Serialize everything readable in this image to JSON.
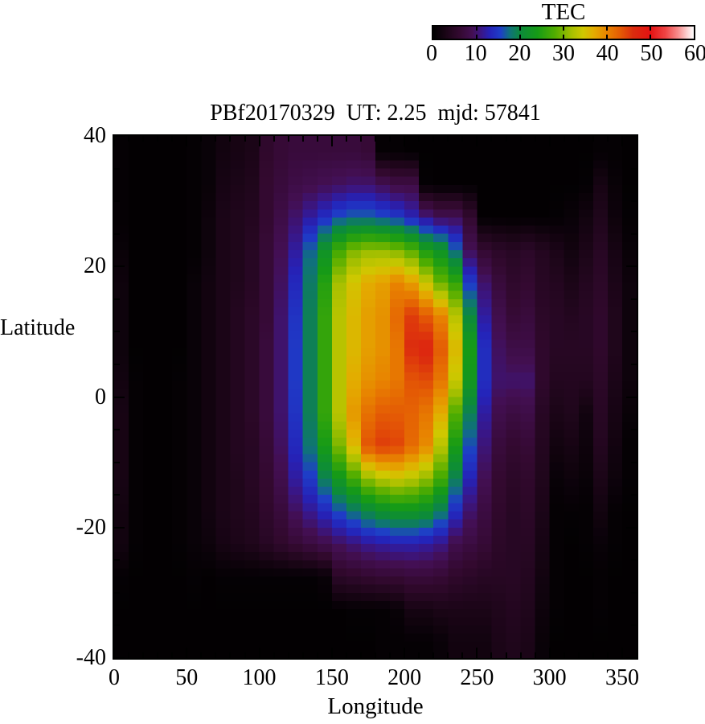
{
  "chart_data": {
    "type": "heatmap",
    "title": "PBf20170329  UT: 2.25  mjd: 57841",
    "xlabel": "Longitude",
    "ylabel": "Latitude",
    "xlim": [
      0,
      360
    ],
    "ylim": [
      -40,
      40
    ],
    "xticks_major": [
      0,
      50,
      100,
      150,
      200,
      250,
      300,
      350
    ],
    "xtick_minor_step": 10,
    "yticks_major": [
      40,
      20,
      0,
      -20,
      -40
    ],
    "ytick_minor_step": 5,
    "grid_lines": false,
    "colorbar": {
      "title": "TEC",
      "min": 0,
      "max": 60,
      "ticks": [
        0,
        10,
        20,
        30,
        40,
        50,
        60
      ]
    },
    "colormap_stops": [
      [
        0,
        "#000000"
      ],
      [
        3,
        "#1b0517"
      ],
      [
        6,
        "#330930"
      ],
      [
        9,
        "#430f52"
      ],
      [
        11,
        "#3a1685"
      ],
      [
        13,
        "#2522b8"
      ],
      [
        15.5,
        "#1e3ec8"
      ],
      [
        17.5,
        "#10707e"
      ],
      [
        20,
        "#0c8a3c"
      ],
      [
        24,
        "#169b16"
      ],
      [
        28,
        "#51ad00"
      ],
      [
        32,
        "#a8c000"
      ],
      [
        34.5,
        "#cfc800"
      ],
      [
        37,
        "#e3ac00"
      ],
      [
        40,
        "#e88400"
      ],
      [
        43,
        "#e45c04"
      ],
      [
        46,
        "#dc2c0e"
      ],
      [
        50,
        "#e41212"
      ],
      [
        53.5,
        "#ef4444"
      ],
      [
        56.5,
        "#f89090"
      ],
      [
        58.5,
        "#fcd2d2"
      ],
      [
        60,
        "#ffffff"
      ]
    ],
    "grid": {
      "lon_start": 5,
      "lon_step": 10,
      "lat_start": 37.5,
      "lat_step": -5,
      "values": [
        [
          0.5,
          0.3,
          0.3,
          0.3,
          0.3,
          0.5,
          1,
          2,
          2.5,
          3,
          5.5,
          6.5,
          7,
          7,
          7,
          7,
          7,
          6.5,
          0.5,
          0.5,
          0.3,
          0.3,
          0.3,
          0.3,
          0.3,
          0.3,
          0.3,
          0.3,
          0.3,
          0.3,
          0.3,
          0.3,
          0.3,
          0.5,
          0.5,
          0.3
        ],
        [
          0.5,
          0.3,
          0.3,
          0.3,
          0.3,
          0.5,
          1,
          2.5,
          3,
          3.5,
          6,
          7,
          8,
          8.5,
          9,
          9.5,
          10,
          10,
          9,
          8,
          8,
          0.5,
          0.3,
          0.3,
          0.3,
          0.3,
          0.3,
          0.3,
          0.3,
          0.3,
          0.3,
          0.3,
          0.5,
          2.5,
          1,
          0.3
        ],
        [
          0.5,
          0.3,
          0.3,
          0.3,
          0.3,
          0.5,
          1.5,
          3,
          3.5,
          4,
          6,
          8,
          10,
          12,
          14,
          16,
          17,
          17,
          16,
          15,
          13,
          11,
          9,
          9,
          6,
          0.3,
          0.3,
          0.3,
          0.3,
          0.3,
          0.5,
          1,
          2,
          3.5,
          1.5,
          0.5
        ],
        [
          1,
          0.3,
          0.3,
          0.3,
          0.3,
          0.5,
          1.5,
          3,
          3.5,
          4.5,
          6.5,
          9,
          12,
          17,
          22,
          27,
          30,
          31,
          31,
          30,
          28,
          24,
          22,
          17,
          9,
          6,
          5,
          4.5,
          5,
          4,
          3,
          2,
          3,
          4.5,
          2.5,
          1
        ],
        [
          1.5,
          0.3,
          0.3,
          0.3,
          0.3,
          1,
          2,
          3,
          3.5,
          4.5,
          6.5,
          9.5,
          13.5,
          18.5,
          25,
          32,
          35,
          37,
          38,
          40,
          38,
          34,
          29,
          26,
          15,
          10,
          7,
          5.5,
          6,
          4.5,
          4,
          3,
          4,
          5,
          3,
          1.5
        ],
        [
          1.5,
          0.3,
          0.3,
          0.3,
          0.3,
          1,
          2,
          3,
          4,
          5,
          6.5,
          10,
          14.5,
          19,
          26,
          33,
          36,
          38,
          39,
          42,
          45,
          43,
          40,
          33,
          20,
          12,
          8.5,
          6.5,
          7,
          5,
          4.5,
          4,
          4.5,
          5.5,
          3.5,
          1.5
        ],
        [
          1.5,
          0.3,
          0.3,
          0.3,
          0.3,
          1,
          2,
          3,
          4,
          5,
          7,
          10,
          15,
          19,
          26,
          33,
          36,
          38,
          39,
          41,
          46,
          47,
          43,
          36,
          24,
          14,
          9.5,
          8,
          8,
          5.5,
          4.5,
          4.5,
          4.5,
          5.5,
          3.5,
          1.5
        ],
        [
          2,
          0.5,
          0.3,
          0.3,
          0.5,
          1,
          2,
          3,
          4,
          5,
          7,
          10,
          15,
          19,
          26,
          33,
          37,
          39,
          40,
          41,
          43.5,
          44,
          41,
          34,
          23,
          14,
          10,
          10,
          10,
          5.5,
          4,
          4,
          4,
          5,
          3,
          1.5
        ],
        [
          2.5,
          0.5,
          0.3,
          0.3,
          0.5,
          1,
          2,
          3,
          4,
          5,
          7,
          10,
          14.5,
          19,
          26,
          33,
          38.5,
          41.5,
          43,
          43,
          42.5,
          41,
          37,
          28,
          19,
          12,
          8.5,
          7.5,
          8,
          4.5,
          3,
          3.5,
          2,
          4.5,
          2.5,
          1
        ],
        [
          2.5,
          0.5,
          0.3,
          0.3,
          0.5,
          1,
          2,
          3,
          4,
          4.5,
          6.5,
          9.5,
          13.5,
          18,
          24,
          30,
          36,
          43.5,
          45,
          44.5,
          42,
          39.5,
          33,
          24,
          16,
          10.5,
          7,
          6,
          6.5,
          4,
          2,
          2.5,
          1.5,
          4,
          2,
          0.5
        ],
        [
          2.5,
          0.5,
          0.3,
          0.3,
          0.5,
          1,
          2,
          3,
          3.5,
          4.5,
          6,
          8.5,
          12,
          15,
          19,
          23,
          27,
          31,
          33,
          34,
          33,
          31,
          27,
          19,
          13,
          9,
          6,
          5,
          5.5,
          3.5,
          1,
          1.5,
          1,
          3,
          1.5,
          0.5
        ],
        [
          2,
          0.5,
          0.3,
          0.3,
          0.5,
          1,
          2,
          3,
          3.5,
          4,
          5.5,
          7,
          9.5,
          11.5,
          13.5,
          16,
          18,
          20,
          21.5,
          22.5,
          22.5,
          21.5,
          18.5,
          14,
          10,
          7.5,
          5.5,
          4.5,
          5,
          3,
          0.5,
          0.5,
          0.5,
          2,
          0.5,
          0.3
        ],
        [
          2,
          0.5,
          0.3,
          0.3,
          0.5,
          1,
          1.5,
          2.5,
          3,
          3.5,
          4.5,
          5.5,
          6.5,
          7.5,
          8.5,
          9.5,
          10.5,
          11.5,
          12,
          12.5,
          12.5,
          12,
          11,
          8.5,
          7.5,
          6.5,
          5,
          4.5,
          4.5,
          2.5,
          0.5,
          0.3,
          0.5,
          1,
          0.5,
          0.3
        ],
        [
          0.5,
          0.3,
          0.3,
          0.3,
          0.3,
          0.5,
          0.3,
          0.5,
          0.5,
          0.5,
          0.5,
          0.5,
          0.5,
          0.5,
          1,
          5,
          5.5,
          6,
          6.5,
          6.5,
          7,
          7,
          6.5,
          5.5,
          5,
          4.5,
          4.5,
          4.5,
          4,
          2,
          0.5,
          0.3,
          0.3,
          0.5,
          0.3,
          0.3
        ],
        [
          0.3,
          0.3,
          0.3,
          0.3,
          0.3,
          0.3,
          0.3,
          0.3,
          0.3,
          0.3,
          0.3,
          0.3,
          0.3,
          0.3,
          0.3,
          0.3,
          0.5,
          0.5,
          0.5,
          1,
          2.5,
          2.5,
          3,
          3,
          3,
          3,
          3.5,
          4,
          3.5,
          1.5,
          0.5,
          0.3,
          0.3,
          0.5,
          0.3,
          0.3
        ],
        [
          0.3,
          0.3,
          0.3,
          0.3,
          0.3,
          0.3,
          0.3,
          0.3,
          0.3,
          0.3,
          0.3,
          0.3,
          0.3,
          0.3,
          0.3,
          0.3,
          0.3,
          0.3,
          0.5,
          0.5,
          0.5,
          0.5,
          1,
          2,
          2,
          2,
          3,
          3.5,
          3,
          1,
          0.3,
          0.3,
          0.3,
          0.3,
          0.3,
          0.3
        ]
      ]
    }
  }
}
